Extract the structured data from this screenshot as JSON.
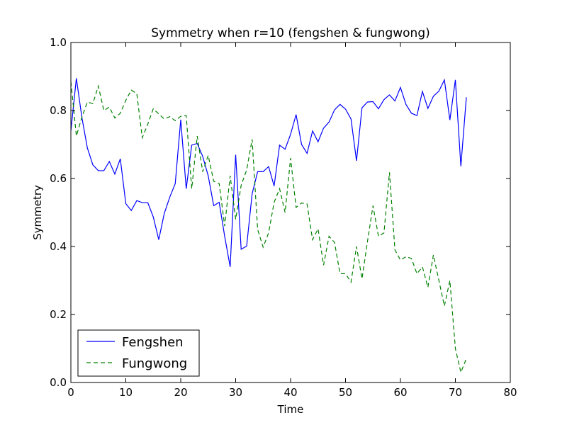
{
  "chart_data": {
    "type": "line",
    "title": "Symmetry when r=10 (fengshen & fungwong)",
    "xlabel": "Time",
    "ylabel": "Symmetry",
    "xlim": [
      0,
      80
    ],
    "ylim": [
      0.0,
      1.0
    ],
    "xticks": [
      "0",
      "10",
      "20",
      "30",
      "40",
      "50",
      "60",
      "70",
      "80"
    ],
    "yticks": [
      "0.0",
      "0.2",
      "0.4",
      "0.6",
      "0.8",
      "1.0"
    ],
    "grid": false,
    "legend_position": "lower-left",
    "series": [
      {
        "name": "Fengshen",
        "color": "#0000ff",
        "style": "solid",
        "x": [
          0,
          1,
          2,
          3,
          4,
          5,
          6,
          7,
          8,
          9,
          10,
          11,
          12,
          13,
          14,
          15,
          16,
          17,
          18,
          19,
          20,
          21,
          22,
          23,
          24,
          25,
          26,
          27,
          28,
          29,
          30,
          31,
          32,
          33,
          34,
          35,
          36,
          37,
          38,
          39,
          40,
          41,
          42,
          43,
          44,
          45,
          46,
          47,
          48,
          49,
          50,
          51,
          52,
          53,
          54,
          55,
          56,
          57,
          58,
          59,
          60,
          61,
          62,
          63,
          64,
          65,
          66,
          67,
          68,
          69,
          70,
          71,
          72
        ],
        "values": [
          0.74,
          0.895,
          0.78,
          0.69,
          0.64,
          0.623,
          0.623,
          0.65,
          0.613,
          0.658,
          0.526,
          0.506,
          0.535,
          0.529,
          0.529,
          0.487,
          0.42,
          0.497,
          0.545,
          0.585,
          0.773,
          0.57,
          0.698,
          0.703,
          0.665,
          0.608,
          0.52,
          0.53,
          0.43,
          0.34,
          0.67,
          0.392,
          0.401,
          0.555,
          0.62,
          0.62,
          0.635,
          0.578,
          0.698,
          0.686,
          0.73,
          0.788,
          0.7,
          0.674,
          0.74,
          0.708,
          0.748,
          0.766,
          0.802,
          0.818,
          0.804,
          0.775,
          0.652,
          0.808,
          0.825,
          0.826,
          0.805,
          0.832,
          0.846,
          0.828,
          0.868,
          0.818,
          0.792,
          0.785,
          0.856,
          0.806,
          0.842,
          0.857,
          0.89,
          0.772,
          0.89,
          0.636,
          0.839
        ]
      },
      {
        "name": "Fungwong",
        "color": "#008000",
        "style": "dashed",
        "x": [
          0,
          1,
          2,
          3,
          4,
          5,
          6,
          7,
          8,
          9,
          10,
          11,
          12,
          13,
          14,
          15,
          16,
          17,
          18,
          19,
          20,
          21,
          22,
          23,
          24,
          25,
          26,
          27,
          28,
          29,
          30,
          31,
          32,
          33,
          34,
          35,
          36,
          37,
          38,
          39,
          40,
          41,
          42,
          43,
          44,
          45,
          46,
          47,
          48,
          49,
          50,
          51,
          52,
          53,
          54,
          55,
          56,
          57,
          58,
          59,
          60,
          61,
          62,
          63,
          64,
          65,
          66,
          67,
          68,
          69,
          70,
          71,
          72
        ],
        "values": [
          0.885,
          0.725,
          0.78,
          0.825,
          0.82,
          0.872,
          0.8,
          0.81,
          0.778,
          0.792,
          0.83,
          0.86,
          0.85,
          0.72,
          0.76,
          0.805,
          0.79,
          0.775,
          0.782,
          0.77,
          0.783,
          0.785,
          0.57,
          0.725,
          0.62,
          0.668,
          0.592,
          0.585,
          0.46,
          0.608,
          0.48,
          0.58,
          0.625,
          0.715,
          0.45,
          0.398,
          0.44,
          0.53,
          0.57,
          0.5,
          0.66,
          0.515,
          0.528,
          0.525,
          0.42,
          0.452,
          0.345,
          0.43,
          0.412,
          0.32,
          0.32,
          0.295,
          0.4,
          0.305,
          0.415,
          0.52,
          0.43,
          0.44,
          0.618,
          0.39,
          0.36,
          0.37,
          0.365,
          0.32,
          0.34,
          0.28,
          0.375,
          0.3,
          0.225,
          0.3,
          0.1,
          0.03,
          0.07
        ]
      }
    ]
  }
}
